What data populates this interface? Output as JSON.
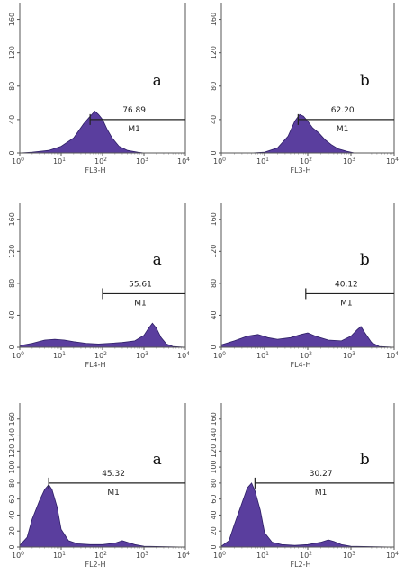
{
  "chart_data": [
    {
      "type": "area",
      "panel_label": "a",
      "xlabel": "FL3-H",
      "x_scale": "log",
      "xlim": [
        1,
        10000
      ],
      "ylim": [
        0,
        180
      ],
      "y_ticks": [
        "0",
        "40",
        "80",
        "120",
        "160"
      ],
      "x_ticks": [
        "10",
        "10",
        "10",
        "10",
        "10"
      ],
      "x_tick_exponents": [
        "0",
        "1",
        "2",
        "3",
        "4"
      ],
      "fill_color": "#5a3e9e",
      "histogram": {
        "x": [
          1,
          2,
          5,
          10,
          20,
          35,
          50,
          65,
          80,
          100,
          130,
          170,
          250,
          400,
          700,
          1000,
          1500,
          10000
        ],
        "y": [
          0,
          1,
          3,
          8,
          18,
          35,
          44,
          50,
          46,
          40,
          28,
          18,
          8,
          3,
          1,
          0,
          0,
          0
        ]
      },
      "gate": {
        "name": "M1",
        "percent": "76.89",
        "x_start": 50,
        "x_end": 10000,
        "y": 40
      }
    },
    {
      "type": "area",
      "panel_label": "b",
      "xlabel": "FL3-H",
      "x_scale": "log",
      "xlim": [
        1,
        10000
      ],
      "ylim": [
        0,
        180
      ],
      "y_ticks": [
        "0",
        "40",
        "80",
        "120",
        "160"
      ],
      "x_ticks": [
        "10",
        "10",
        "10",
        "10",
        "10"
      ],
      "x_tick_exponents": [
        "0",
        "1",
        "2",
        "3",
        "4"
      ],
      "fill_color": "#5a3e9e",
      "histogram": {
        "x": [
          1,
          5,
          10,
          20,
          35,
          50,
          65,
          80,
          100,
          130,
          180,
          250,
          350,
          500,
          800,
          1200,
          10000
        ],
        "y": [
          0,
          0,
          1,
          6,
          20,
          38,
          46,
          44,
          38,
          30,
          24,
          16,
          10,
          5,
          2,
          0,
          0
        ]
      },
      "gate": {
        "name": "M1",
        "percent": "62.20",
        "x_start": 60,
        "x_end": 10000,
        "y": 40
      }
    },
    {
      "type": "area",
      "panel_label": "a",
      "xlabel": "FL4-H",
      "x_scale": "log",
      "xlim": [
        1,
        10000
      ],
      "ylim": [
        0,
        180
      ],
      "y_ticks": [
        "0",
        "40",
        "80",
        "120",
        "160"
      ],
      "x_ticks": [
        "10",
        "10",
        "10",
        "10",
        "10"
      ],
      "x_tick_exponents": [
        "0",
        "1",
        "2",
        "3",
        "4"
      ],
      "fill_color": "#5a3e9e",
      "histogram": {
        "x": [
          1,
          2,
          4,
          7,
          12,
          20,
          40,
          80,
          150,
          300,
          600,
          1000,
          1300,
          1600,
          2000,
          2600,
          3500,
          5000,
          10000
        ],
        "y": [
          2,
          5,
          9,
          10,
          9,
          7,
          5,
          4,
          5,
          6,
          8,
          15,
          24,
          30,
          24,
          12,
          4,
          1,
          0
        ]
      },
      "gate": {
        "name": "M1",
        "percent": "55.61",
        "x_start": 100,
        "x_end": 10000,
        "y": 67
      }
    },
    {
      "type": "area",
      "panel_label": "b",
      "xlabel": "FL4-H",
      "x_scale": "log",
      "xlim": [
        1,
        10000
      ],
      "ylim": [
        0,
        180
      ],
      "y_ticks": [
        "0",
        "40",
        "80",
        "120",
        "160"
      ],
      "x_ticks": [
        "10",
        "10",
        "10",
        "10",
        "10"
      ],
      "x_tick_exponents": [
        "0",
        "1",
        "2",
        "3",
        "4"
      ],
      "fill_color": "#5a3e9e",
      "histogram": {
        "x": [
          1,
          2,
          4,
          7,
          12,
          20,
          40,
          70,
          100,
          150,
          300,
          600,
          1000,
          1400,
          1700,
          2100,
          3000,
          4500,
          10000
        ],
        "y": [
          3,
          8,
          14,
          16,
          12,
          10,
          12,
          16,
          18,
          14,
          9,
          8,
          14,
          22,
          26,
          18,
          6,
          1,
          0
        ]
      },
      "gate": {
        "name": "M1",
        "percent": "40.12",
        "x_start": 90,
        "x_end": 10000,
        "y": 67
      }
    },
    {
      "type": "area",
      "panel_label": "a",
      "xlabel": "FL2-H",
      "x_scale": "log",
      "xlim": [
        1,
        10000
      ],
      "ylim": [
        0,
        180
      ],
      "y_ticks": [
        "0",
        "20",
        "40",
        "60",
        "80",
        "100",
        "120",
        "140",
        "160"
      ],
      "x_ticks": [
        "10",
        "10",
        "10",
        "10",
        "10"
      ],
      "x_tick_exponents": [
        "0",
        "1",
        "2",
        "3",
        "4"
      ],
      "fill_color": "#5a3e9e",
      "histogram": {
        "x": [
          1,
          1.5,
          2,
          3,
          4,
          5,
          6,
          8,
          10,
          15,
          25,
          50,
          100,
          200,
          300,
          400,
          600,
          1000,
          10000
        ],
        "y": [
          2,
          12,
          35,
          58,
          72,
          78,
          72,
          50,
          22,
          8,
          4,
          3,
          3,
          5,
          8,
          6,
          3,
          1,
          0
        ]
      },
      "gate": {
        "name": "M1",
        "percent": "45.32",
        "x_start": 5,
        "x_end": 10000,
        "y": 80
      }
    },
    {
      "type": "area",
      "panel_label": "b",
      "xlabel": "FL2-H",
      "x_scale": "log",
      "xlim": [
        1,
        10000
      ],
      "ylim": [
        0,
        180
      ],
      "y_ticks": [
        "0",
        "20",
        "40",
        "60",
        "80",
        "100",
        "120",
        "140",
        "160"
      ],
      "x_ticks": [
        "10",
        "10",
        "10",
        "10",
        "10"
      ],
      "x_tick_exponents": [
        "0",
        "1",
        "2",
        "3",
        "4"
      ],
      "fill_color": "#5a3e9e",
      "histogram": {
        "x": [
          1,
          1.5,
          2,
          3,
          4,
          5,
          6,
          8,
          10,
          15,
          25,
          50,
          100,
          200,
          300,
          400,
          600,
          1000,
          10000
        ],
        "y": [
          1,
          8,
          28,
          55,
          74,
          80,
          70,
          46,
          18,
          6,
          3,
          2,
          3,
          6,
          9,
          7,
          3,
          1,
          0
        ]
      },
      "gate": {
        "name": "M1",
        "percent": "30.27",
        "x_start": 6,
        "x_end": 10000,
        "y": 80
      }
    }
  ]
}
